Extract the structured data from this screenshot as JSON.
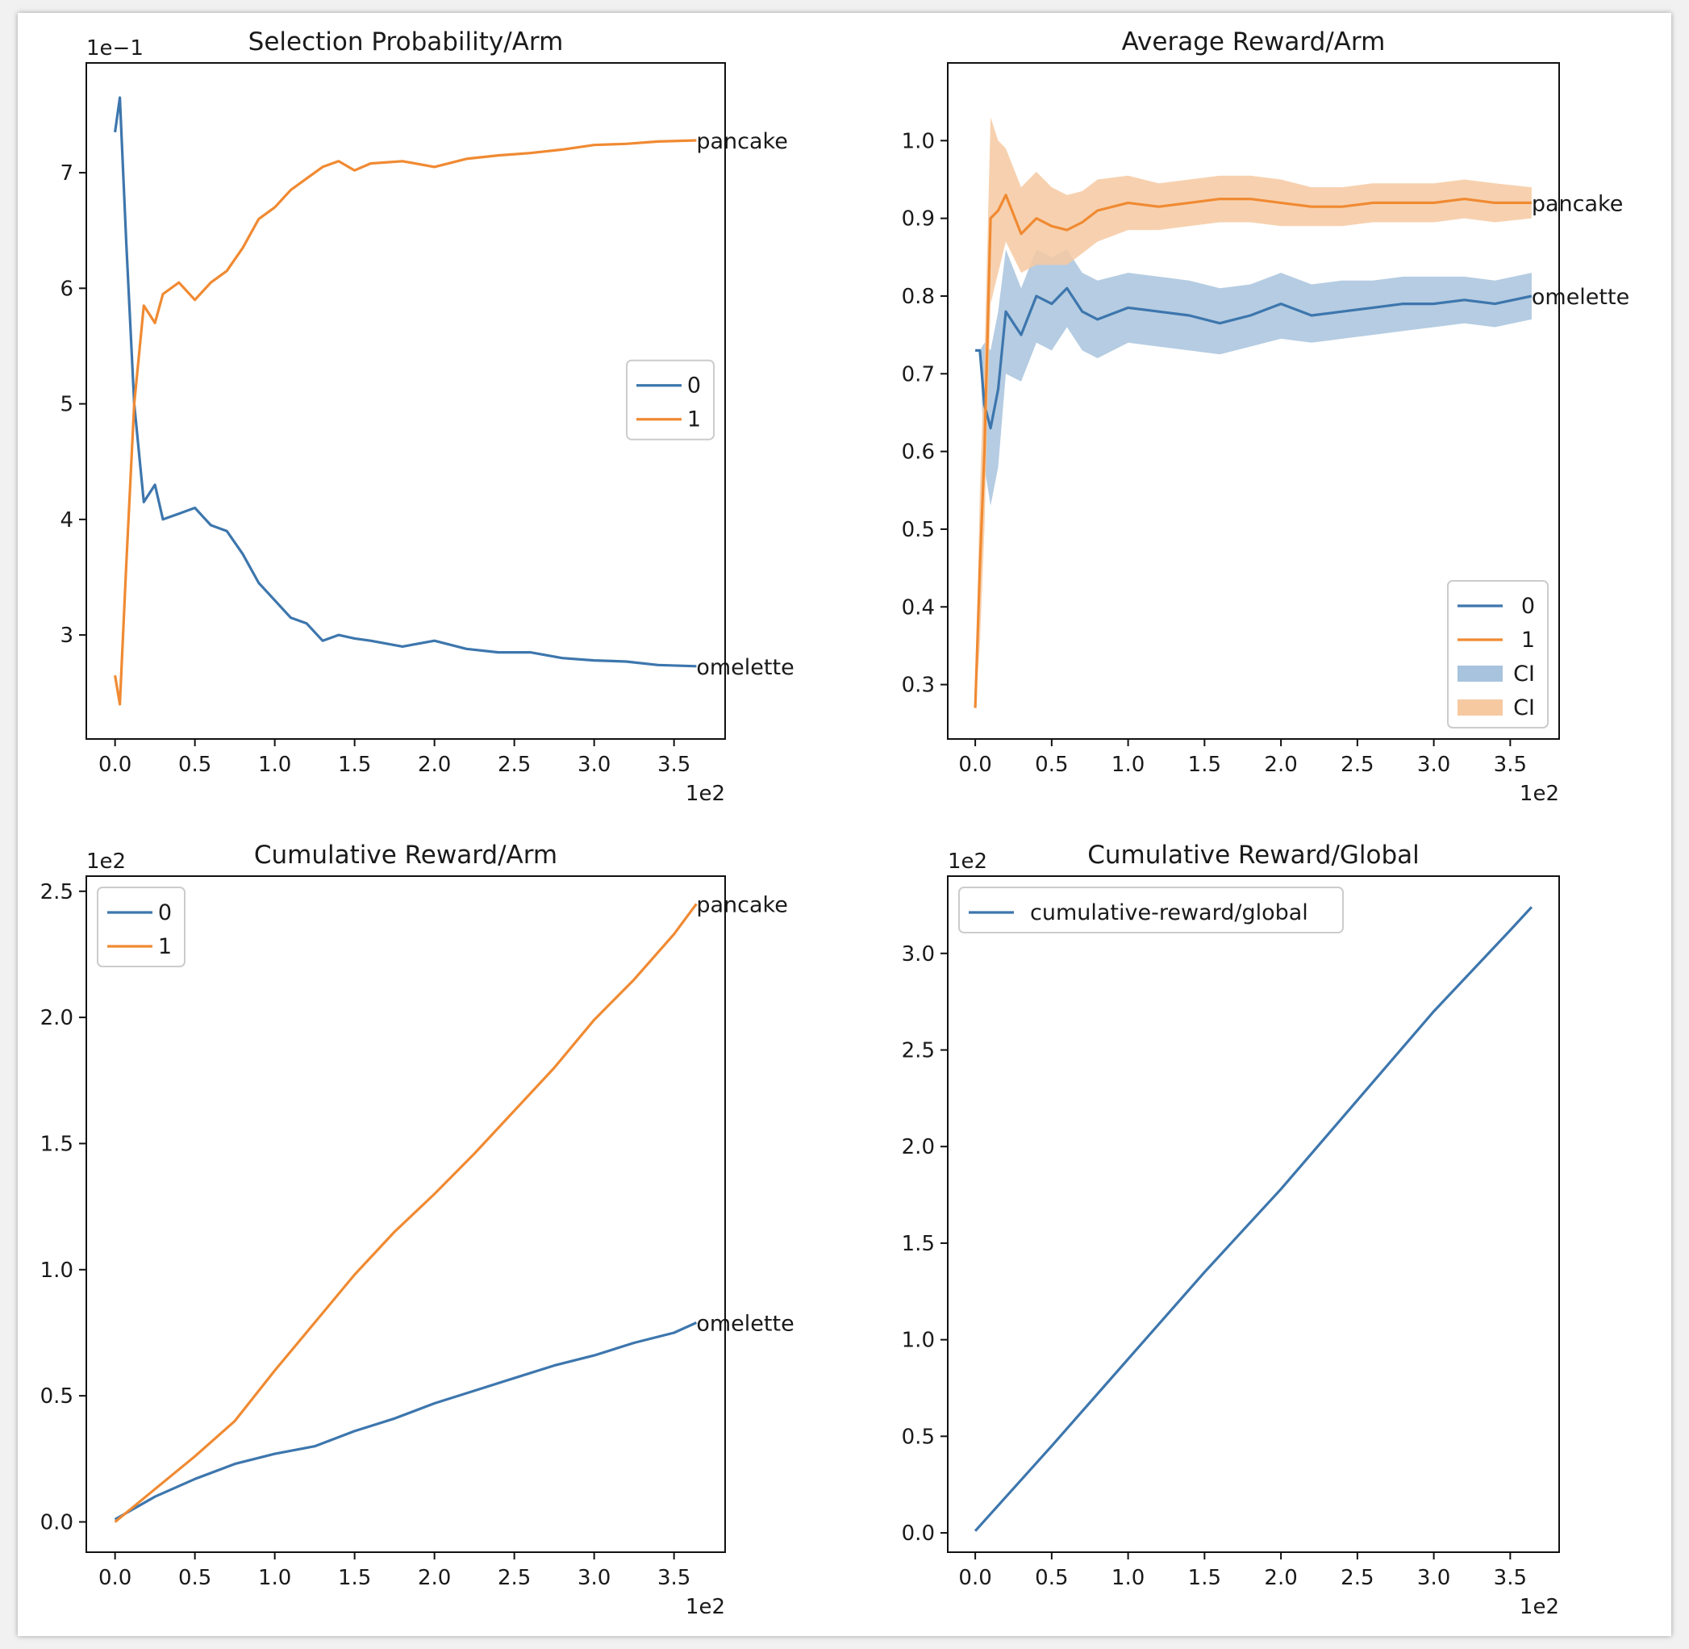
{
  "colors": {
    "blue": "#3d76ad",
    "orange": "#f08a32",
    "blue_band": "#a8c3dd",
    "orange_band": "#f6c9a1"
  },
  "chart_data": [
    {
      "type": "line",
      "title": "Selection Probability/Arm",
      "xlabel": "",
      "ylabel": "",
      "x_offset_text": "1e2",
      "y_offset_text": "1e−1",
      "xlim": [
        -0.18,
        3.82
      ],
      "ylim": [
        2.1,
        7.95
      ],
      "xticks": [
        "0.0",
        "0.5",
        "1.0",
        "1.5",
        "2.0",
        "2.5",
        "3.0",
        "3.5"
      ],
      "yticks": [
        "3",
        "4",
        "5",
        "6",
        "7"
      ],
      "legend": {
        "position": "center-right",
        "entries": [
          "0",
          "1"
        ]
      },
      "series": [
        {
          "name": "0",
          "annotation": "omelette",
          "x": [
            0,
            0.03,
            0.07,
            0.12,
            0.18,
            0.25,
            0.3,
            0.4,
            0.5,
            0.6,
            0.7,
            0.8,
            0.9,
            1.0,
            1.1,
            1.2,
            1.3,
            1.4,
            1.5,
            1.6,
            1.8,
            2.0,
            2.2,
            2.4,
            2.6,
            2.8,
            3.0,
            3.2,
            3.4,
            3.64
          ],
          "y": [
            7.35,
            7.65,
            6.4,
            5.0,
            4.15,
            4.3,
            4.0,
            4.05,
            4.1,
            3.95,
            3.9,
            3.7,
            3.45,
            3.3,
            3.15,
            3.1,
            2.95,
            3.0,
            2.97,
            2.95,
            2.9,
            2.95,
            2.88,
            2.85,
            2.85,
            2.8,
            2.78,
            2.77,
            2.74,
            2.73
          ]
        },
        {
          "name": "1",
          "annotation": "pancake",
          "x": [
            0,
            0.03,
            0.07,
            0.12,
            0.18,
            0.25,
            0.3,
            0.4,
            0.5,
            0.6,
            0.7,
            0.8,
            0.9,
            1.0,
            1.1,
            1.2,
            1.3,
            1.4,
            1.5,
            1.6,
            1.8,
            2.0,
            2.2,
            2.4,
            2.6,
            2.8,
            3.0,
            3.2,
            3.4,
            3.64
          ],
          "y": [
            2.65,
            2.4,
            3.6,
            5.0,
            5.85,
            5.7,
            5.95,
            6.05,
            5.9,
            6.05,
            6.15,
            6.35,
            6.6,
            6.7,
            6.85,
            6.95,
            7.05,
            7.1,
            7.02,
            7.08,
            7.1,
            7.05,
            7.12,
            7.15,
            7.17,
            7.2,
            7.24,
            7.25,
            7.27,
            7.28
          ]
        }
      ]
    },
    {
      "type": "line",
      "title": "Average Reward/Arm",
      "xlabel": "",
      "ylabel": "",
      "x_offset_text": "1e2",
      "y_offset_text": "",
      "xlim": [
        -0.18,
        3.82
      ],
      "ylim": [
        0.23,
        1.1
      ],
      "xticks": [
        "0.0",
        "0.5",
        "1.0",
        "1.5",
        "2.0",
        "2.5",
        "3.0",
        "3.5"
      ],
      "yticks": [
        "0.3",
        "0.4",
        "0.5",
        "0.6",
        "0.7",
        "0.8",
        "0.9",
        "1.0"
      ],
      "legend": {
        "position": "lower-right",
        "entries": [
          "0",
          "1",
          "CI",
          "CI"
        ]
      },
      "series": [
        {
          "name": "0",
          "annotation": "omelette",
          "x": [
            0,
            0.03,
            0.06,
            0.1,
            0.15,
            0.2,
            0.3,
            0.4,
            0.5,
            0.6,
            0.7,
            0.8,
            1.0,
            1.2,
            1.4,
            1.6,
            1.8,
            2.0,
            2.2,
            2.4,
            2.6,
            2.8,
            3.0,
            3.2,
            3.4,
            3.64
          ],
          "y": [
            0.73,
            0.73,
            0.66,
            0.63,
            0.68,
            0.78,
            0.75,
            0.8,
            0.79,
            0.81,
            0.78,
            0.77,
            0.785,
            0.78,
            0.775,
            0.765,
            0.775,
            0.79,
            0.775,
            0.78,
            0.785,
            0.79,
            0.79,
            0.795,
            0.79,
            0.8
          ],
          "ci_low": [
            0.73,
            0.73,
            0.58,
            0.53,
            0.58,
            0.7,
            0.69,
            0.74,
            0.73,
            0.76,
            0.73,
            0.72,
            0.74,
            0.735,
            0.73,
            0.725,
            0.735,
            0.745,
            0.74,
            0.745,
            0.75,
            0.755,
            0.76,
            0.765,
            0.76,
            0.77
          ],
          "ci_high": [
            0.73,
            0.73,
            0.74,
            0.73,
            0.78,
            0.86,
            0.81,
            0.86,
            0.85,
            0.86,
            0.83,
            0.82,
            0.83,
            0.825,
            0.82,
            0.81,
            0.815,
            0.83,
            0.815,
            0.82,
            0.82,
            0.825,
            0.825,
            0.825,
            0.82,
            0.83
          ]
        },
        {
          "name": "1",
          "annotation": "pancake",
          "x": [
            0,
            0.03,
            0.06,
            0.1,
            0.15,
            0.2,
            0.3,
            0.4,
            0.5,
            0.6,
            0.7,
            0.8,
            1.0,
            1.2,
            1.4,
            1.6,
            1.8,
            2.0,
            2.2,
            2.4,
            2.6,
            2.8,
            3.0,
            3.2,
            3.4,
            3.64
          ],
          "y": [
            0.27,
            0.45,
            0.6,
            0.9,
            0.91,
            0.93,
            0.88,
            0.9,
            0.89,
            0.885,
            0.895,
            0.91,
            0.92,
            0.915,
            0.92,
            0.925,
            0.925,
            0.92,
            0.915,
            0.915,
            0.92,
            0.92,
            0.92,
            0.925,
            0.92,
            0.92
          ],
          "ci_low": [
            0.27,
            0.35,
            0.5,
            0.79,
            0.83,
            0.87,
            0.83,
            0.84,
            0.84,
            0.84,
            0.855,
            0.87,
            0.885,
            0.885,
            0.89,
            0.895,
            0.895,
            0.89,
            0.89,
            0.89,
            0.895,
            0.895,
            0.895,
            0.9,
            0.895,
            0.9
          ],
          "ci_high": [
            0.27,
            0.55,
            0.72,
            1.03,
            1.0,
            0.99,
            0.94,
            0.96,
            0.94,
            0.93,
            0.935,
            0.95,
            0.955,
            0.945,
            0.95,
            0.955,
            0.955,
            0.95,
            0.94,
            0.94,
            0.945,
            0.945,
            0.945,
            0.95,
            0.945,
            0.94
          ]
        }
      ]
    },
    {
      "type": "line",
      "title": "Cumulative Reward/Arm",
      "xlabel": "",
      "ylabel": "",
      "x_offset_text": "1e2",
      "y_offset_text": "1e2",
      "xlim": [
        -0.18,
        3.82
      ],
      "ylim": [
        -0.12,
        2.56
      ],
      "xticks": [
        "0.0",
        "0.5",
        "1.0",
        "1.5",
        "2.0",
        "2.5",
        "3.0",
        "3.5"
      ],
      "yticks": [
        "0.0",
        "0.5",
        "1.0",
        "1.5",
        "2.0",
        "2.5"
      ],
      "legend": {
        "position": "upper-left",
        "entries": [
          "0",
          "1"
        ]
      },
      "series": [
        {
          "name": "0",
          "annotation": "omelette",
          "x": [
            0,
            0.25,
            0.5,
            0.75,
            1.0,
            1.25,
            1.5,
            1.75,
            2.0,
            2.25,
            2.5,
            2.75,
            3.0,
            3.25,
            3.5,
            3.64
          ],
          "y": [
            0.01,
            0.1,
            0.17,
            0.23,
            0.27,
            0.3,
            0.36,
            0.41,
            0.47,
            0.52,
            0.57,
            0.62,
            0.66,
            0.71,
            0.75,
            0.79
          ]
        },
        {
          "name": "1",
          "annotation": "pancake",
          "x": [
            0,
            0.25,
            0.5,
            0.75,
            1.0,
            1.25,
            1.5,
            1.75,
            2.0,
            2.25,
            2.5,
            2.75,
            3.0,
            3.25,
            3.5,
            3.64
          ],
          "y": [
            0.0,
            0.13,
            0.26,
            0.4,
            0.6,
            0.79,
            0.98,
            1.15,
            1.3,
            1.46,
            1.63,
            1.8,
            1.99,
            2.15,
            2.33,
            2.45
          ]
        }
      ]
    },
    {
      "type": "line",
      "title": "Cumulative Reward/Global",
      "xlabel": "",
      "ylabel": "",
      "x_offset_text": "1e2",
      "y_offset_text": "1e2",
      "xlim": [
        -0.18,
        3.82
      ],
      "ylim": [
        -0.1,
        3.4
      ],
      "xticks": [
        "0.0",
        "0.5",
        "1.0",
        "1.5",
        "2.0",
        "2.5",
        "3.0",
        "3.5"
      ],
      "yticks": [
        "0.0",
        "0.5",
        "1.0",
        "1.5",
        "2.0",
        "2.5",
        "3.0"
      ],
      "legend": {
        "position": "upper-left",
        "entries": [
          "cumulative-reward/global"
        ]
      },
      "series": [
        {
          "name": "cumulative-reward/global",
          "x": [
            0,
            0.5,
            1.0,
            1.5,
            2.0,
            2.5,
            3.0,
            3.5,
            3.64
          ],
          "y": [
            0.01,
            0.45,
            0.9,
            1.35,
            1.78,
            2.24,
            2.7,
            3.12,
            3.24
          ]
        }
      ]
    }
  ]
}
